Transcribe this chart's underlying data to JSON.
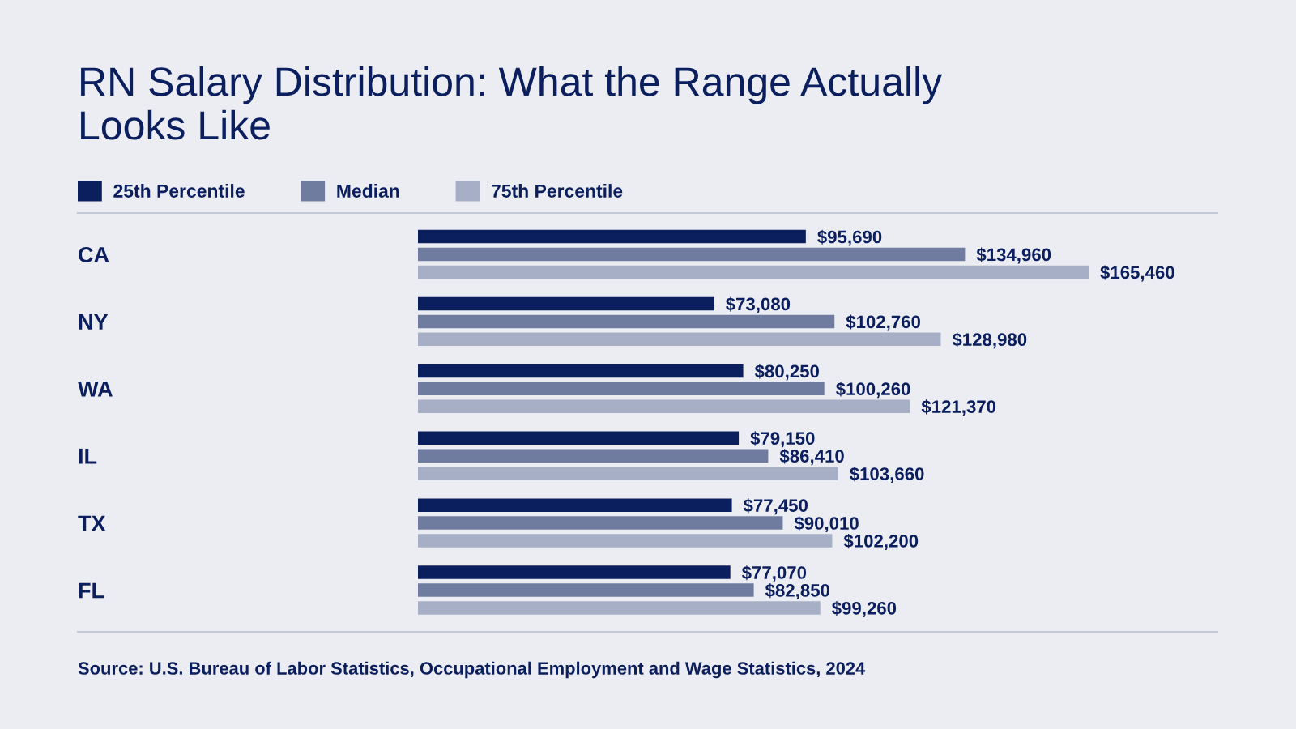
{
  "chart_data": {
    "type": "bar",
    "orientation": "horizontal",
    "title": "RN Salary Distribution: What the Range Actually Looks Like",
    "categories": [
      "CA",
      "NY",
      "WA",
      "IL",
      "TX",
      "FL"
    ],
    "series": [
      {
        "name": "25th Percentile",
        "color": "#0b1f5e",
        "values": [
          95690,
          73080,
          80250,
          79150,
          77450,
          77070
        ],
        "value_labels": [
          "$95,690",
          "$73,080",
          "$80,250",
          "$79,150",
          "$77,450",
          "$77,070"
        ]
      },
      {
        "name": "Median",
        "color": "#6f7ca0",
        "values": [
          134960,
          102760,
          100260,
          86410,
          90010,
          82850
        ],
        "value_labels": [
          "$134,960",
          "$102,760",
          "$100,260",
          "$86,410",
          "$90,010",
          "$82,850"
        ]
      },
      {
        "name": "75th Percentile",
        "color": "#a7afc6",
        "values": [
          165460,
          128980,
          121370,
          103660,
          102200,
          99260
        ],
        "value_labels": [
          "$165,460",
          "$128,980",
          "$121,370",
          "$103,660",
          "$102,200",
          "$99,260"
        ]
      }
    ],
    "legend": "top left",
    "tick_labels": "y",
    "annotations": [
      "Source: U.S. Bureau of Labor Statistics, Occupational Employment and Wage Statistics, 2024"
    ]
  }
}
